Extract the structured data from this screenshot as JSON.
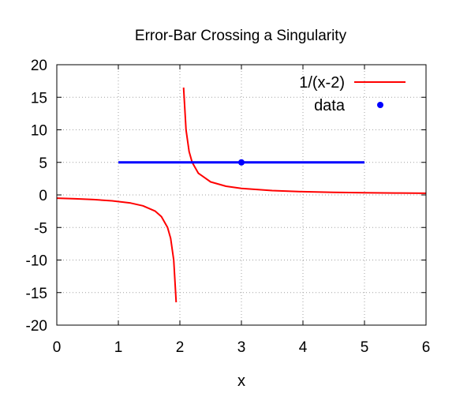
{
  "chart_data": {
    "type": "line",
    "title": "Error-Bar Crossing a Singularity",
    "xlabel": "x",
    "ylabel": "",
    "xlim": [
      0,
      6
    ],
    "ylim": [
      -20,
      20
    ],
    "x_ticks": [
      "0",
      "1",
      "2",
      "3",
      "4",
      "5",
      "6"
    ],
    "y_ticks": [
      "20",
      "15",
      "10",
      "5",
      "0",
      "-5",
      "-10",
      "-15",
      "-20"
    ],
    "grid": true,
    "legend_position": "top-right",
    "series": [
      {
        "name": "1/(x-2)",
        "kind": "line",
        "color": "#ff0000",
        "segments": [
          {
            "x": [
              0,
              0.3,
              0.6,
              0.9,
              1.2,
              1.4,
              1.6,
              1.7,
              1.8,
              1.85,
              1.9,
              1.94
            ],
            "y": [
              -0.5,
              -0.588,
              -0.714,
              -0.909,
              -1.25,
              -1.667,
              -2.5,
              -3.333,
              -5,
              -6.667,
              -10,
              -16.5
            ]
          },
          {
            "x": [
              2.06,
              2.1,
              2.15,
              2.2,
              2.3,
              2.5,
              2.75,
              3,
              3.5,
              4,
              4.5,
              5,
              5.5,
              6
            ],
            "y": [
              16.5,
              10,
              6.667,
              5,
              3.333,
              2,
              1.333,
              1,
              0.667,
              0.5,
              0.4,
              0.333,
              0.286,
              0.25
            ]
          }
        ]
      },
      {
        "name": "data",
        "kind": "point_with_xerror",
        "color": "#0000ff",
        "x": [
          3
        ],
        "y": [
          5
        ],
        "xerr_low": [
          1
        ],
        "xerr_high": [
          5
        ]
      }
    ]
  }
}
